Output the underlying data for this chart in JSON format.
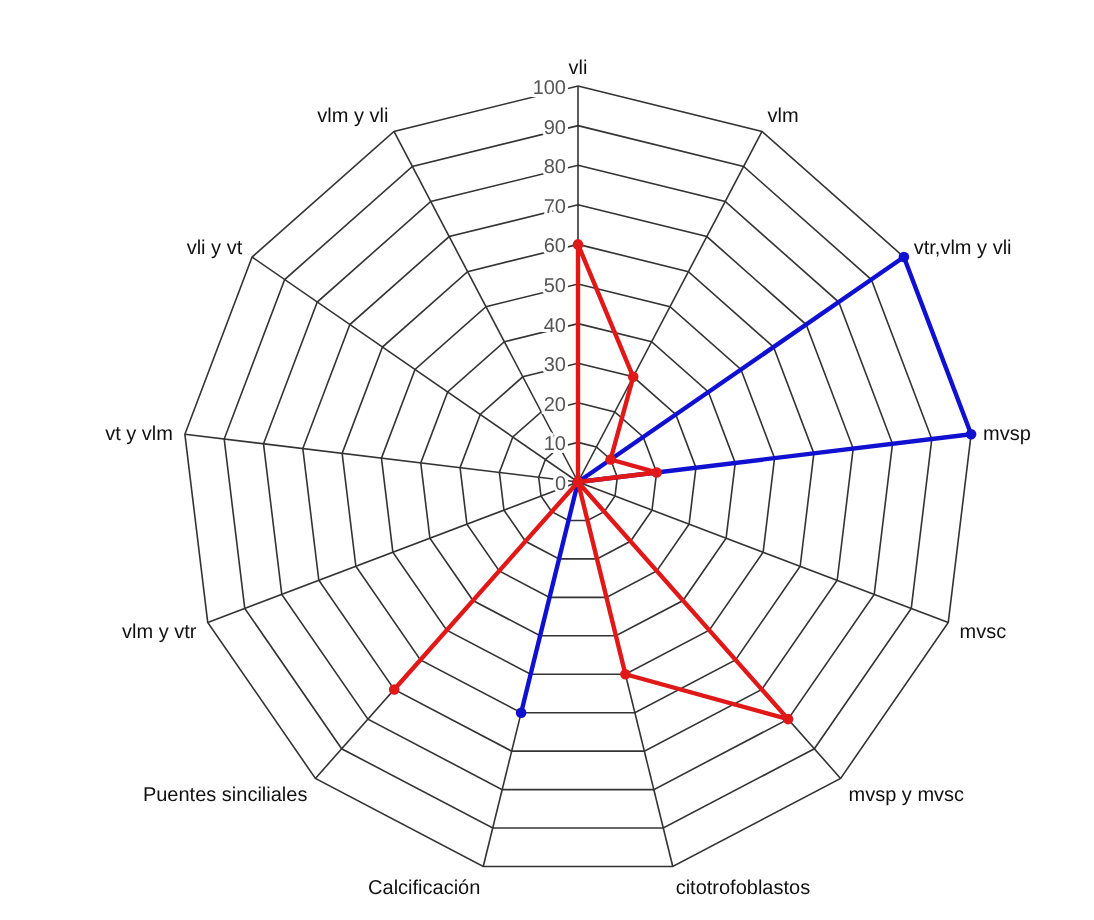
{
  "chart_data": {
    "type": "radar",
    "categories": [
      "vli",
      "vlm",
      "vtr,vlm y vli",
      "mvsp",
      "mvsc",
      "mvsp y mvsc",
      "citotrofoblastos",
      "Calcificación",
      "Puentes sinciliales",
      "vlm y vtr",
      "vt y vlm",
      "vli y vt",
      "vlm y vli"
    ],
    "series": [
      {
        "color": "#e01818",
        "values": [
          60,
          30,
          10,
          20,
          0,
          80,
          50,
          0,
          70,
          0,
          0,
          0,
          0
        ]
      },
      {
        "color": "#1010d0",
        "values": [
          0,
          0,
          100,
          100,
          0,
          0,
          0,
          60,
          0,
          0,
          0,
          0,
          0
        ]
      }
    ],
    "ylim": [
      0,
      100
    ],
    "yticks": [
      0,
      10,
      20,
      30,
      40,
      50,
      60,
      70,
      80,
      90,
      100
    ],
    "grid": true,
    "marker": "circle"
  }
}
